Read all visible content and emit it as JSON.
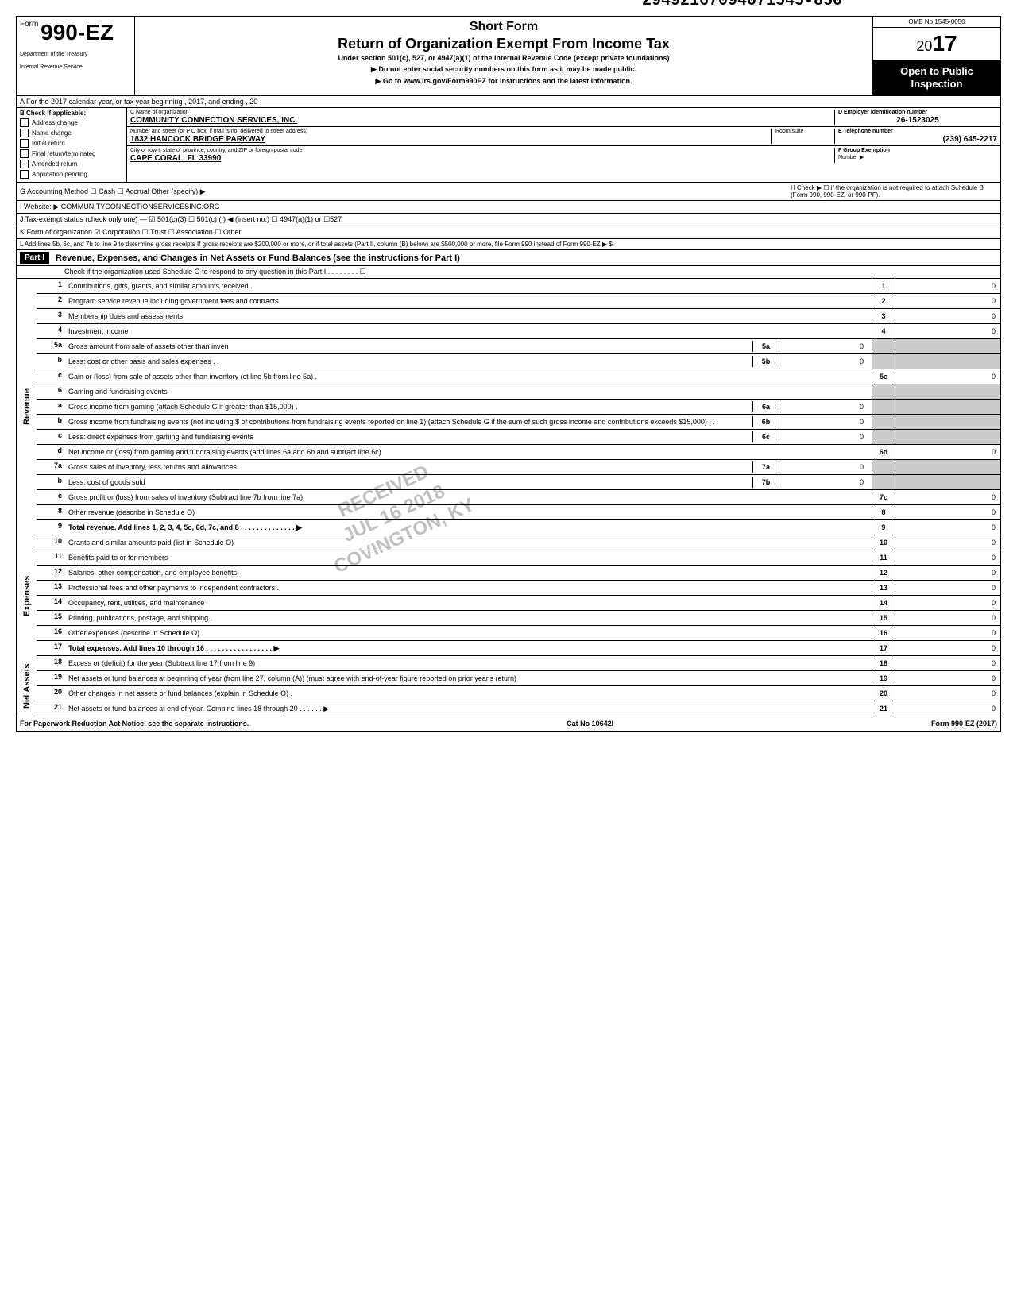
{
  "top_number": "29492167094071545-850",
  "omb": "OMB No 1545-0050",
  "form": {
    "prefix": "Form",
    "number": "990-EZ",
    "dept1": "Department of the Treasury",
    "dept2": "Internal Revenue Service"
  },
  "header": {
    "short_form": "Short Form",
    "title": "Return of Organization Exempt From Income Tax",
    "under": "Under section 501(c), 527, or 4947(a)(1) of the Internal Revenue Code (except private foundations)",
    "ssn": "▶ Do not enter social security numbers on this form as it may be made public.",
    "goto": "▶ Go to www.irs.gov/Form990EZ for instructions and the latest information.",
    "year_prefix": "20",
    "year": "17",
    "open_public": "Open to Public Inspection"
  },
  "row_a": "A  For the 2017 calendar year, or tax year beginning                                                              , 2017, and ending                                                    , 20",
  "section_b": {
    "label": "B  Check if applicable:",
    "items": [
      "Address change",
      "Name change",
      "Initial return",
      "Final return/terminated",
      "Amended return",
      "Application pending"
    ]
  },
  "section_c": {
    "name_label": "C  Name of organization",
    "name_value": "COMMUNITY CONNECTION SERVICES, INC.",
    "street_label": "Number and street (or P O  box, if mail is not delivered to street address)",
    "room_label": "Room/suite",
    "street_value": "1832 HANCOCK BRIDGE PARKWAY",
    "city_label": "City or town, state or province, country, and ZIP or foreign postal code",
    "city_value": "CAPE CORAL, FL 33990"
  },
  "section_d": {
    "label": "D Employer identification number",
    "value": "26-1523025"
  },
  "section_e": {
    "label": "E Telephone number",
    "value": "(239) 645-2217"
  },
  "section_f": {
    "label": "F Group Exemption",
    "label2": "Number ▶"
  },
  "row_g": "G  Accounting Method      ☐ Cash      ☐ Accrual      Other (specify) ▶",
  "row_h": "H  Check ▶ ☐ if the organization is not required to attach Schedule B (Form 990, 990-EZ, or 990-PF).",
  "row_i": "I   Website: ▶        COMMUNITYCONNECTIONSERVICESINC.ORG",
  "row_j": "J  Tax-exempt status (check only one) —  ☑ 501(c)(3)    ☐ 501(c) (        ) ◀ (insert no.)  ☐ 4947(a)(1) or    ☐527",
  "row_k": "K  Form of organization     ☑ Corporation      ☐ Trust                   ☐ Association         ☐ Other",
  "row_l": "L  Add lines 5b, 6c, and 7b to line 9 to determine gross receipts  If gross receipts are $200,000 or more, or if total assets (Part II, column (B)  below) are $500,000 or more, file Form 990 instead of Form 990-EZ                                                          ▶   $",
  "part1": {
    "label": "Part I",
    "title": "Revenue, Expenses, and Changes in Net Assets or Fund Balances (see the instructions for Part I)",
    "check": "Check if the organization used Schedule O to respond to any question in this Part I  .  .  .  .  .  .  .  .  ☐"
  },
  "sides": {
    "revenue": "Revenue",
    "expenses": "Expenses",
    "netassets": "Net Assets"
  },
  "lines": [
    {
      "n": "1",
      "desc": "Contributions, gifts, grants, and similar amounts received .",
      "box": "1",
      "val": "0"
    },
    {
      "n": "2",
      "desc": "Program service revenue including government fees and contracts",
      "box": "2",
      "val": "0"
    },
    {
      "n": "3",
      "desc": "Membership dues and assessments",
      "box": "3",
      "val": "0"
    },
    {
      "n": "4",
      "desc": "Investment income",
      "box": "4",
      "val": "0"
    },
    {
      "n": "5a",
      "desc": "Gross amount from sale of assets other than inven",
      "ibox": "5a",
      "ival": "0",
      "shaded": true
    },
    {
      "n": "b",
      "desc": "Less: cost or other basis and sales expenses .  .",
      "ibox": "5b",
      "ival": "0",
      "shaded": true
    },
    {
      "n": "c",
      "desc": "Gain or (loss) from sale of assets other than inventory            (ct line 5b from line 5a)  .",
      "box": "5c",
      "val": "0"
    },
    {
      "n": "6",
      "desc": "Gaming and fundraising events",
      "shaded": true,
      "noval": true
    },
    {
      "n": "a",
      "desc": "Gross income from gaming (attach Schedule G if greater than $15,000) .",
      "ibox": "6a",
      "ival": "0",
      "shaded": true
    },
    {
      "n": "b",
      "desc": "Gross income from fundraising events (not including  $                    of contributions from fundraising events reported on line 1) (attach Schedule G if the sum of such gross income and contributions exceeds $15,000) .  .",
      "ibox": "6b",
      "ival": "0",
      "shaded": true
    },
    {
      "n": "c",
      "desc": "Less: direct expenses from gaming and fundraising events",
      "ibox": "6c",
      "ival": "0",
      "shaded": true
    },
    {
      "n": "d",
      "desc": "Net income or (loss) from gaming and fundraising events (add lines 6a and 6b and subtract line 6c)",
      "box": "6d",
      "val": "0"
    },
    {
      "n": "7a",
      "desc": "Gross sales of inventory, less returns and allowances",
      "ibox": "7a",
      "ival": "0",
      "shaded": true
    },
    {
      "n": "b",
      "desc": "Less: cost of goods sold",
      "ibox": "7b",
      "ival": "0",
      "shaded": true
    },
    {
      "n": "c",
      "desc": "Gross profit or (loss) from sales of inventory (Subtract line 7b from line 7a)",
      "box": "7c",
      "val": "0"
    },
    {
      "n": "8",
      "desc": "Other revenue (describe in Schedule O)",
      "box": "8",
      "val": "0"
    },
    {
      "n": "9",
      "desc": "Total revenue. Add lines 1, 2, 3, 4, 5c, 6d, 7c, and 8   .  .  .  .  .  .  .  .  .  .  .  .  .  .  ▶",
      "box": "9",
      "val": "0",
      "bold": true
    }
  ],
  "expense_lines": [
    {
      "n": "10",
      "desc": "Grants and similar amounts paid (list in Schedule O)",
      "box": "10",
      "val": "0"
    },
    {
      "n": "11",
      "desc": "Benefits paid to or for members",
      "box": "11",
      "val": "0"
    },
    {
      "n": "12",
      "desc": "Salaries, other compensation, and employee benefits",
      "box": "12",
      "val": "0"
    },
    {
      "n": "13",
      "desc": "Professional fees and other payments to independent contractors .",
      "box": "13",
      "val": "0"
    },
    {
      "n": "14",
      "desc": "Occupancy, rent, utilities, and maintenance",
      "box": "14",
      "val": "0"
    },
    {
      "n": "15",
      "desc": "Printing, publications, postage, and shipping .",
      "box": "15",
      "val": "0"
    },
    {
      "n": "16",
      "desc": "Other expenses (describe in Schedule O)  .",
      "box": "16",
      "val": "0"
    },
    {
      "n": "17",
      "desc": "Total expenses. Add lines 10 through 16    .  .  .  .  .  .  .  .  .  .  .  .  .  .  .  .  .  ▶",
      "box": "17",
      "val": "0",
      "bold": true
    }
  ],
  "netasset_lines": [
    {
      "n": "18",
      "desc": "Excess or (deficit) for the year (Subtract line 17 from line 9)",
      "box": "18",
      "val": "0"
    },
    {
      "n": "19",
      "desc": "Net assets or fund balances at beginning of year (from line 27, column (A)) (must agree with end-of-year figure reported on prior year's return)",
      "box": "19",
      "val": "0"
    },
    {
      "n": "20",
      "desc": "Other changes in net assets or fund balances (explain in Schedule O) .",
      "box": "20",
      "val": "0"
    },
    {
      "n": "21",
      "desc": "Net assets or fund balances at end of year. Combine lines 18 through 20   .  .  .  .  .  .  ▶",
      "box": "21",
      "val": "0"
    }
  ],
  "footer": {
    "left": "For Paperwork Reduction Act Notice, see the separate instructions.",
    "mid": "Cat  No  10642I",
    "right": "Form 990-EZ (2017)"
  },
  "stamp": "RECEIVED\nJUL 16 2018\nCOVINGTON, KY"
}
